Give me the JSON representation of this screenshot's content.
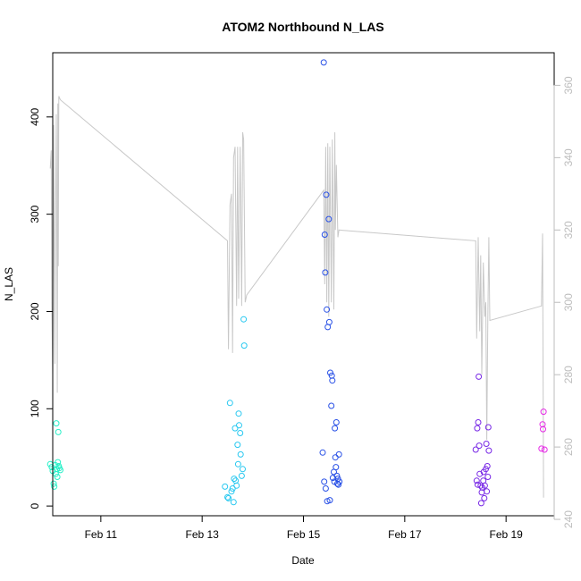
{
  "chart_data": {
    "type": "scatter",
    "title": "ATOM2 Northbound N_LAS",
    "xlabel": "Date",
    "ylabel": "N_LAS",
    "x_ticks": [
      {
        "day": 11,
        "label": "Feb 11"
      },
      {
        "day": 13,
        "label": "Feb 13"
      },
      {
        "day": 15,
        "label": "Feb 15"
      },
      {
        "day": 17,
        "label": "Feb 17"
      },
      {
        "day": 19,
        "label": "Feb 19"
      }
    ],
    "xlim": [
      10.05,
      19.95
    ],
    "ylim": [
      -10,
      466
    ],
    "y_ticks": [
      0,
      100,
      200,
      300,
      400
    ],
    "y2lim": [
      241,
      369
    ],
    "y2_ticks": [
      240,
      260,
      280,
      300,
      320,
      340,
      360
    ],
    "series": [
      {
        "color": "#28f0c8",
        "points": [
          [
            10.0,
            43
          ],
          [
            10.03,
            40
          ],
          [
            10.05,
            36
          ],
          [
            10.07,
            23
          ],
          [
            10.08,
            20
          ],
          [
            10.1,
            42
          ],
          [
            10.11,
            33
          ],
          [
            10.12,
            85
          ],
          [
            10.13,
            38
          ],
          [
            10.14,
            30
          ],
          [
            10.15,
            45
          ],
          [
            10.16,
            76
          ],
          [
            10.17,
            41
          ],
          [
            10.18,
            39
          ],
          [
            10.2,
            37
          ]
        ]
      },
      {
        "color": "#28c8f0",
        "points": [
          [
            13.45,
            20
          ],
          [
            13.5,
            9
          ],
          [
            13.52,
            8
          ],
          [
            13.55,
            106
          ],
          [
            13.58,
            15
          ],
          [
            13.6,
            18
          ],
          [
            13.62,
            4
          ],
          [
            13.63,
            28
          ],
          [
            13.65,
            80
          ],
          [
            13.66,
            26
          ],
          [
            13.68,
            21
          ],
          [
            13.7,
            63
          ],
          [
            13.71,
            43
          ],
          [
            13.72,
            95
          ],
          [
            13.73,
            83
          ],
          [
            13.75,
            75
          ],
          [
            13.76,
            53
          ],
          [
            13.78,
            31
          ],
          [
            13.8,
            38
          ],
          [
            13.82,
            192
          ],
          [
            13.83,
            165
          ]
        ]
      },
      {
        "color": "#2850e6",
        "points": [
          [
            15.38,
            55
          ],
          [
            15.4,
            456
          ],
          [
            15.41,
            25
          ],
          [
            15.42,
            279
          ],
          [
            15.43,
            240
          ],
          [
            15.44,
            18
          ],
          [
            15.45,
            320
          ],
          [
            15.46,
            202
          ],
          [
            15.47,
            5
          ],
          [
            15.48,
            184
          ],
          [
            15.5,
            295
          ],
          [
            15.51,
            189
          ],
          [
            15.52,
            6
          ],
          [
            15.53,
            137
          ],
          [
            15.55,
            103
          ],
          [
            15.56,
            134
          ],
          [
            15.57,
            129
          ],
          [
            15.58,
            29
          ],
          [
            15.6,
            35
          ],
          [
            15.61,
            25
          ],
          [
            15.62,
            80
          ],
          [
            15.63,
            50
          ],
          [
            15.64,
            40
          ],
          [
            15.65,
            86
          ],
          [
            15.66,
            31
          ],
          [
            15.67,
            23
          ],
          [
            15.68,
            28
          ],
          [
            15.69,
            22
          ],
          [
            15.7,
            53
          ],
          [
            15.71,
            25
          ]
        ]
      },
      {
        "color": "#7828e6",
        "points": [
          [
            18.4,
            58
          ],
          [
            18.42,
            26
          ],
          [
            18.43,
            80
          ],
          [
            18.44,
            22
          ],
          [
            18.45,
            86
          ],
          [
            18.46,
            133
          ],
          [
            18.47,
            62
          ],
          [
            18.48,
            33
          ],
          [
            18.5,
            21
          ],
          [
            18.51,
            3
          ],
          [
            18.52,
            14
          ],
          [
            18.53,
            19
          ],
          [
            18.55,
            26
          ],
          [
            18.56,
            35
          ],
          [
            18.57,
            8
          ],
          [
            18.58,
            21
          ],
          [
            18.6,
            38
          ],
          [
            18.61,
            64
          ],
          [
            18.62,
            15
          ],
          [
            18.63,
            41
          ],
          [
            18.64,
            30
          ],
          [
            18.65,
            81
          ],
          [
            18.66,
            57
          ]
        ]
      },
      {
        "color": "#e628e6",
        "points": [
          [
            19.7,
            59
          ],
          [
            19.72,
            84
          ],
          [
            19.73,
            79
          ],
          [
            19.74,
            97
          ],
          [
            19.76,
            58
          ]
        ]
      }
    ],
    "secondary_line": {
      "color": "#c8c8c8",
      "points": [
        [
          10.0,
          337
        ],
        [
          10.02,
          342
        ],
        [
          10.03,
          300
        ],
        [
          10.05,
          280
        ],
        [
          10.07,
          349
        ],
        [
          10.09,
          283
        ],
        [
          10.1,
          315
        ],
        [
          10.12,
          352
        ],
        [
          10.14,
          275
        ],
        [
          10.15,
          355
        ],
        [
          10.16,
          310
        ],
        [
          10.17,
          357
        ],
        [
          10.2,
          356
        ],
        [
          13.5,
          317
        ],
        [
          13.52,
          287
        ],
        [
          13.55,
          327
        ],
        [
          13.58,
          330
        ],
        [
          13.6,
          286
        ],
        [
          13.62,
          340
        ],
        [
          13.65,
          343
        ],
        [
          13.68,
          299
        ],
        [
          13.7,
          343
        ],
        [
          13.72,
          301
        ],
        [
          13.75,
          343
        ],
        [
          13.78,
          299
        ],
        [
          13.8,
          347
        ],
        [
          13.82,
          345
        ],
        [
          13.85,
          300
        ],
        [
          13.88,
          302
        ],
        [
          15.4,
          331
        ],
        [
          15.42,
          305
        ],
        [
          15.44,
          343
        ],
        [
          15.46,
          300
        ],
        [
          15.48,
          344
        ],
        [
          15.5,
          296
        ],
        [
          15.52,
          343
        ],
        [
          15.55,
          300
        ],
        [
          15.57,
          345
        ],
        [
          15.6,
          298
        ],
        [
          15.62,
          347
        ],
        [
          15.63,
          320
        ],
        [
          15.65,
          338
        ],
        [
          15.68,
          318
        ],
        [
          15.7,
          320
        ],
        [
          18.4,
          317
        ],
        [
          18.42,
          290
        ],
        [
          18.45,
          318
        ],
        [
          18.48,
          292
        ],
        [
          18.5,
          313
        ],
        [
          18.52,
          280
        ],
        [
          18.55,
          311
        ],
        [
          18.58,
          296
        ],
        [
          18.6,
          300
        ],
        [
          18.62,
          262
        ],
        [
          18.64,
          296
        ],
        [
          18.66,
          318
        ],
        [
          18.68,
          295
        ],
        [
          19.7,
          299
        ],
        [
          19.72,
          319
        ],
        [
          19.74,
          246
        ]
      ]
    }
  }
}
